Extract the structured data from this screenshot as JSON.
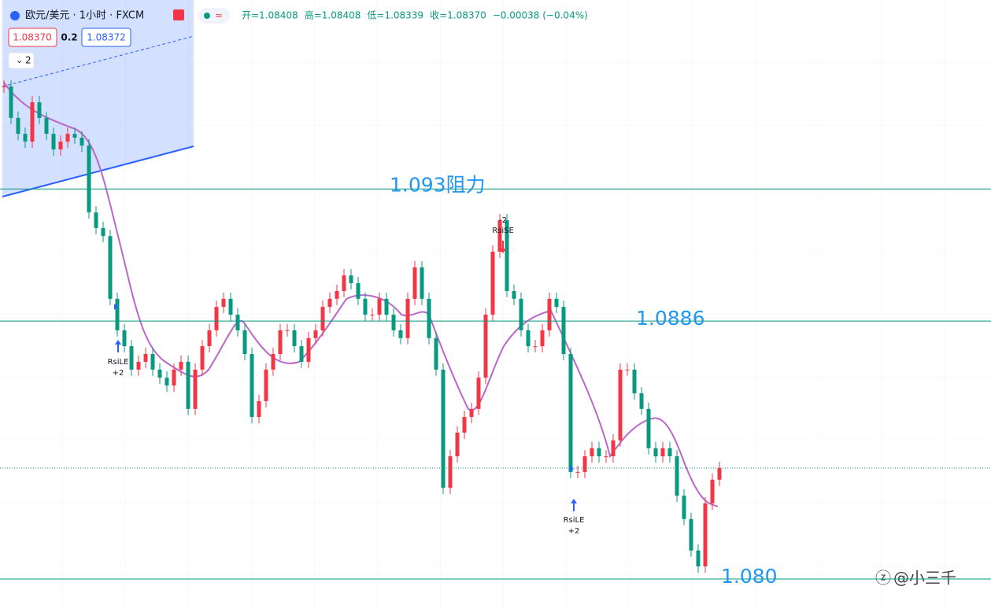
{
  "header": {
    "symbol": "欧元/美元 · 1小时 · FXCM",
    "ohlc": [
      "开=1.08408",
      "高=1.08408",
      "低=1.08339",
      "收=1.08370",
      "−0.00038 (−0.04%)"
    ],
    "bid": "1.08370",
    "spread": "0.2",
    "ask": "1.08372",
    "indicator_count": "2"
  },
  "chart_data": {
    "type": "candlestick",
    "values": [
      1.09642,
      1.09537,
      1.09484,
      1.09458,
      1.09589,
      1.09537,
      1.09484,
      1.09432,
      1.09458,
      1.09484,
      1.09471,
      1.09445,
      1.09222,
      1.0917,
      1.09143,
      1.08934,
      1.08829,
      1.08776,
      1.08698,
      1.08724,
      1.0875,
      1.08698,
      1.08671,
      1.08645,
      1.08698,
      1.08724,
      1.08567,
      1.08698,
      1.08776,
      1.08829,
      1.08907,
      1.08934,
      1.08881,
      1.08829,
      1.0875,
      1.0854,
      1.08593,
      1.08698,
      1.0875,
      1.08829,
      1.08829,
      1.08776,
      1.08724,
      1.08803,
      1.08829,
      1.08907,
      1.08934,
      1.0896,
      1.09012,
      1.08986,
      1.08934,
      1.08881,
      1.08881,
      1.08934,
      1.08881,
      1.08829,
      1.08803,
      1.08934,
      1.09039,
      1.08934,
      1.08803,
      1.08698,
      1.08304,
      1.08409,
      1.08488,
      1.0854,
      1.08567,
      1.08671,
      1.08881,
      1.09091,
      1.09196,
      1.0896,
      1.08934,
      1.08829,
      1.08776,
      1.08776,
      1.08829,
      1.08934,
      1.08907,
      1.0875,
      1.08357,
      1.08357,
      1.08409,
      1.08436,
      1.08409,
      1.08409,
      1.08462,
      1.08698,
      1.08698,
      1.08619,
      1.08567,
      1.08436,
      1.08409,
      1.08436,
      1.08409,
      1.08278,
      1.082,
      1.08095,
      1.08042,
      1.08252,
      1.08331,
      1.0837
    ],
    "ylim": [
      1.0789,
      1.0993
    ],
    "annotations": [
      {
        "text": "1.093阻力",
        "value": 1.093
      },
      {
        "text": "1.0886",
        "value": 1.0886
      },
      {
        "text": "1.080",
        "value": 1.08
      }
    ],
    "current_price": 1.0837,
    "signals": [
      {
        "name": "RsiLE",
        "qty": "+2"
      },
      {
        "name": "RsiSE",
        "qty": "-2"
      },
      {
        "name": "RsiLE",
        "qty": "+2"
      }
    ]
  },
  "watermark": "@小三千"
}
